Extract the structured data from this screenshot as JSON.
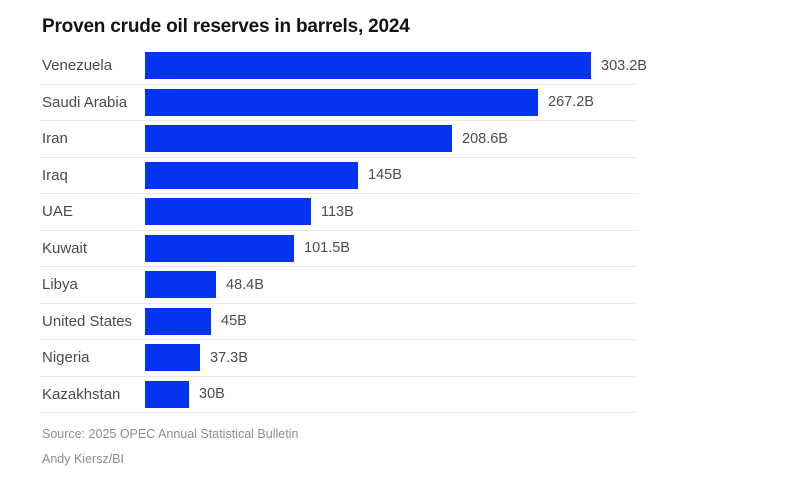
{
  "title": "Proven crude oil reserves in barrels, 2024",
  "source": "Source: 2025 OPEC Annual Statistical Bulletin",
  "credit": "Andy Kiersz/BI",
  "colors": {
    "bar": "#0533f2",
    "title": "#141414",
    "category_label": "#4a4a4a",
    "value_label": "#4d4d4d",
    "separator": "#e7e7e7",
    "footer_text": "#8e8e8e",
    "background": "#ffffff"
  },
  "chart_data": {
    "type": "bar",
    "orientation": "horizontal",
    "title": "Proven crude oil reserves in barrels, 2024",
    "categories": [
      "Venezuela",
      "Saudi Arabia",
      "Iran",
      "Iraq",
      "UAE",
      "Kuwait",
      "Libya",
      "United States",
      "Nigeria",
      "Kazakhstan"
    ],
    "values": [
      303.2,
      267.2,
      208.6,
      145,
      113,
      101.5,
      48.4,
      45,
      37.3,
      30
    ],
    "value_labels": [
      "303.2B",
      "267.2B",
      "208.6B",
      "145B",
      "113B",
      "101.5B",
      "48.4B",
      "45B",
      "37.3B",
      "30B"
    ],
    "value_suffix": "B",
    "xlim": [
      0,
      303.2
    ],
    "grid": false,
    "legend": false,
    "axis_visible": false
  }
}
